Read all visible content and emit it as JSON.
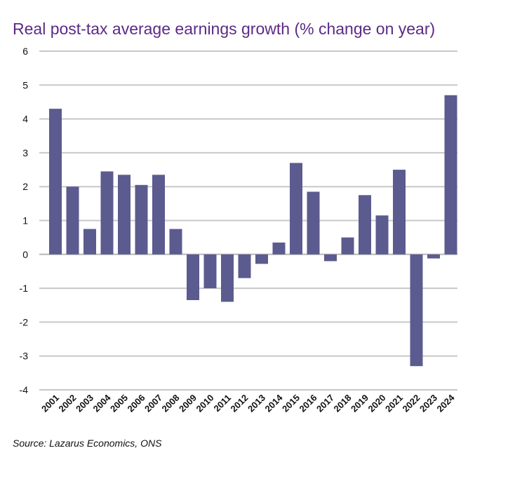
{
  "chart_data": {
    "type": "bar",
    "title": "Real post-tax average earnings growth (% change on year)",
    "source": "Source: Lazarus Economics, ONS",
    "categories": [
      "2001",
      "2002",
      "2003",
      "2004",
      "2005",
      "2006",
      "2007",
      "2008",
      "2009",
      "2010",
      "2011",
      "2012",
      "2013",
      "2014",
      "2015",
      "2016",
      "2017",
      "2018",
      "2019",
      "2020",
      "2021",
      "2022",
      "2023",
      "2024"
    ],
    "values": [
      4.3,
      2.0,
      0.75,
      2.45,
      2.35,
      2.05,
      2.35,
      0.75,
      -1.35,
      -1.0,
      -1.4,
      -0.7,
      -0.28,
      0.35,
      2.7,
      1.85,
      -0.2,
      0.5,
      1.75,
      1.15,
      2.5,
      -3.3,
      -0.12,
      4.7
    ],
    "yticks": [
      6,
      5,
      4,
      3,
      2,
      1,
      0,
      -1,
      -2,
      -3,
      -4
    ],
    "ylim": [
      -4,
      6
    ],
    "grid": true,
    "legend": "none",
    "bar_color": "#5b5b8f",
    "title_color": "#5b2a86"
  }
}
